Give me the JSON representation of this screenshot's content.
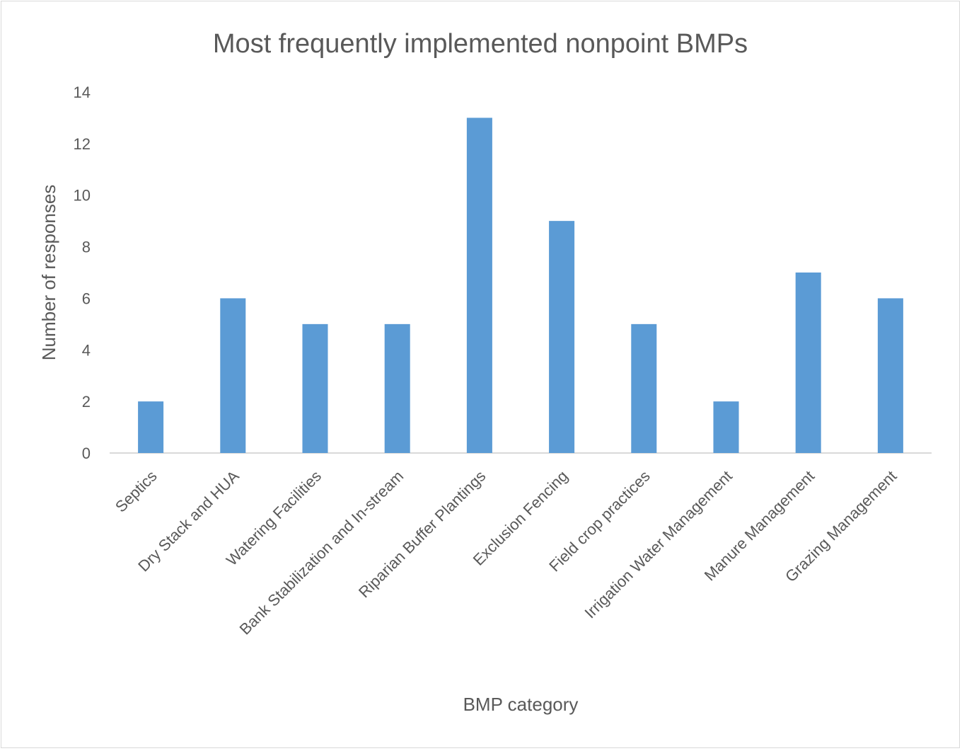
{
  "chart_data": {
    "type": "bar",
    "title": "Most frequently implemented nonpoint BMPs",
    "xlabel": "BMP category",
    "ylabel": "Number of responses",
    "categories": [
      "Septics",
      "Dry Stack and HUA",
      "Watering Facilities",
      "Bank Stabilization and In-stream",
      "Riparian Buffer Plantings",
      "Exclusion Fencing",
      "Field crop practices",
      "Irrigation Water Management",
      "Manure Management",
      "Grazing Management"
    ],
    "values": [
      2,
      6,
      5,
      5,
      13,
      9,
      5,
      2,
      7,
      6
    ],
    "ylim": [
      0,
      14
    ],
    "yticks": [
      0,
      2,
      4,
      6,
      8,
      10,
      12,
      14
    ],
    "grid": false,
    "legend": "none",
    "bar_color": "#5b9bd5",
    "axis_color": "#d9d9d9",
    "text_color": "#595959"
  }
}
